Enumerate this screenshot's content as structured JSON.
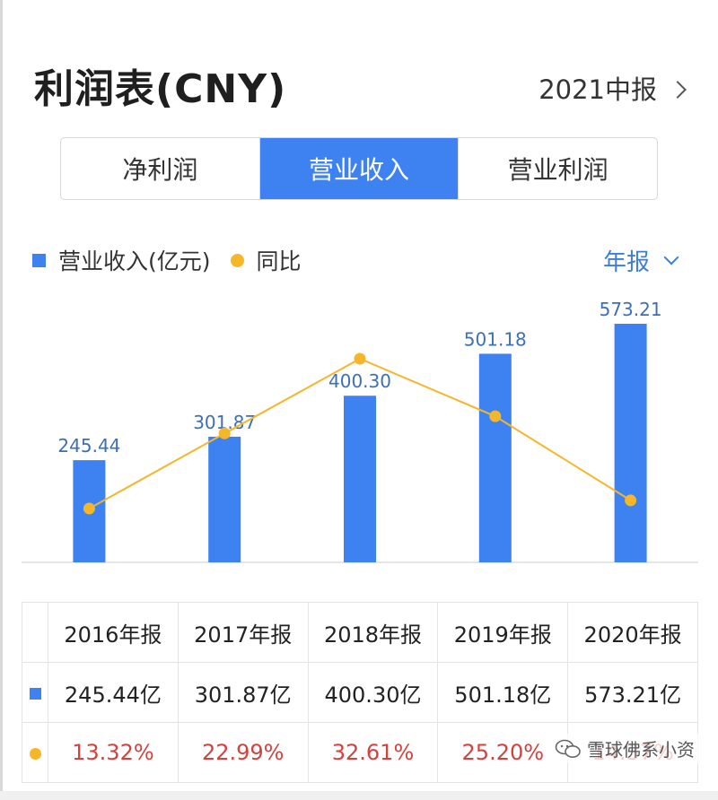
{
  "header": {
    "title": "利润表(CNY)",
    "period": "2021中报"
  },
  "tabs": [
    {
      "label": "净利润",
      "active": false
    },
    {
      "label": "营业收入",
      "active": true
    },
    {
      "label": "营业利润",
      "active": false
    }
  ],
  "legend": {
    "bar": "营业收入(亿元)",
    "line": "同比"
  },
  "period_select": "年报",
  "colors": {
    "bar": "#3d82f0",
    "line": "#f5b62a",
    "pct_text": "#d0433e",
    "bar_label": "#3d6fb6"
  },
  "chart_data": {
    "type": "bar",
    "categories": [
      "2016年报",
      "2017年报",
      "2018年报",
      "2019年报",
      "2020年报"
    ],
    "series": [
      {
        "name": "营业收入(亿元)",
        "type": "bar",
        "values": [
          245.44,
          301.87,
          400.3,
          501.18,
          573.21
        ],
        "labels": [
          "245.44",
          "301.87",
          "400.30",
          "501.18",
          "573.21"
        ]
      },
      {
        "name": "同比",
        "type": "line",
        "values": [
          13.32,
          22.99,
          32.61,
          25.2,
          14.37
        ]
      }
    ],
    "legend_position": "top-left",
    "grid": false
  },
  "table": {
    "headers": [
      "2016年报",
      "2017年报",
      "2018年报",
      "2019年报",
      "2020年报"
    ],
    "revenue": [
      "245.44亿",
      "301.87亿",
      "400.30亿",
      "501.18亿",
      "573.21亿"
    ],
    "yoy": [
      "13.32%",
      "22.99%",
      "32.61%",
      "25.20%",
      "14.37%"
    ]
  },
  "watermark": {
    "text": "雪球佛系小资",
    "icon": "wechat-icon"
  }
}
